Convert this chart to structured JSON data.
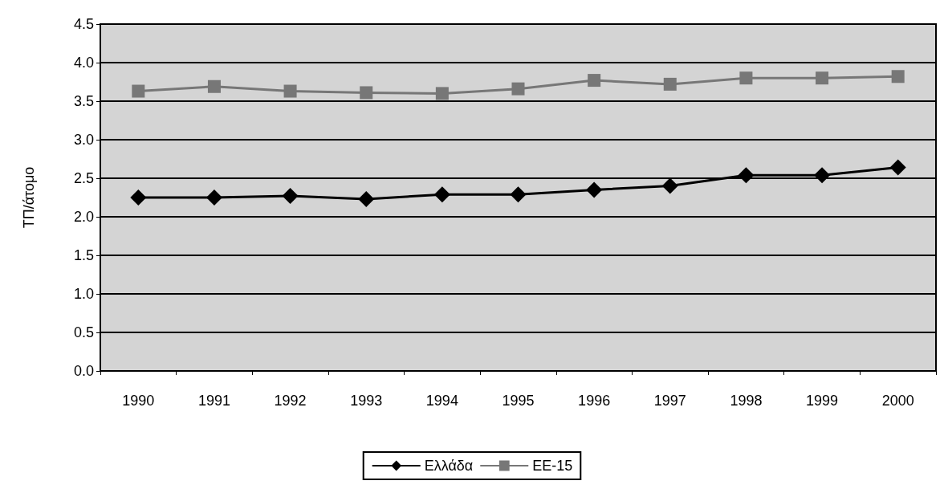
{
  "chart_data": {
    "type": "line",
    "ylabel": "ΤΠ/άτομο",
    "categories": [
      "1990",
      "1991",
      "1992",
      "1993",
      "1994",
      "1995",
      "1996",
      "1997",
      "1998",
      "1999",
      "2000"
    ],
    "series": [
      {
        "name": "Ελλάδα",
        "color": "#000000",
        "marker": "diamond",
        "values": [
          2.25,
          2.25,
          2.27,
          2.23,
          2.29,
          2.29,
          2.35,
          2.4,
          2.54,
          2.54,
          2.64
        ]
      },
      {
        "name": "ΕΕ-15",
        "color": "#777777",
        "marker": "square",
        "values": [
          3.63,
          3.69,
          3.63,
          3.61,
          3.6,
          3.66,
          3.77,
          3.72,
          3.8,
          3.8,
          3.82
        ]
      }
    ],
    "ylim": [
      0,
      4.5
    ],
    "yticks": [
      {
        "value": 0,
        "label": "0.0"
      },
      0.5,
      {
        "value": 1,
        "label": "1.0"
      },
      1.5,
      {
        "value": 2,
        "label": "2.0"
      },
      2.5,
      {
        "value": 3,
        "label": "3.0"
      },
      3.5,
      {
        "value": 4,
        "label": "4.0"
      },
      4.5
    ],
    "grid": "y",
    "legend": "bottom"
  }
}
